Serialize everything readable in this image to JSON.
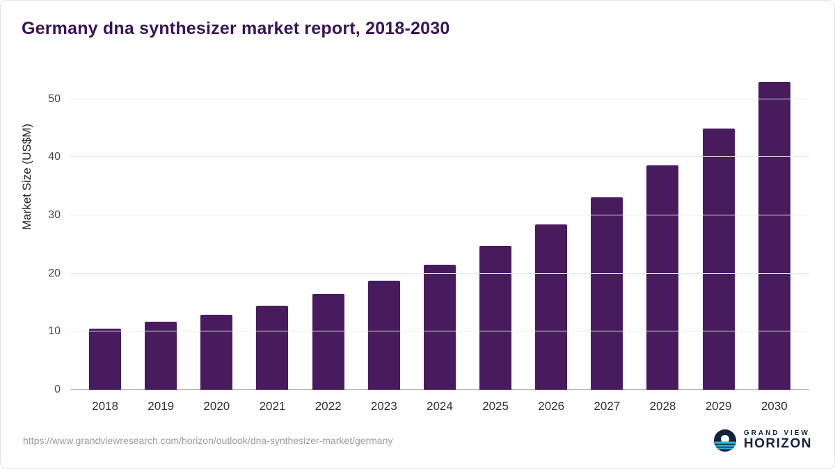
{
  "title": "Germany dna synthesizer market report, 2018-2030",
  "footer": {
    "source_url": "https://www.grandviewresearch.com/horizon/outlook/dna-synthesizer-market/germany",
    "brand_top": "GRAND VIEW",
    "brand_bottom": "HORIZON"
  },
  "colors": {
    "bar": "#471b5e",
    "title": "#3a1354",
    "brand_navy": "#14233c",
    "brand_cyan": "#29b7d3",
    "gridline": "#e8e8e8"
  },
  "chart_data": {
    "type": "bar",
    "title": "Germany dna synthesizer market report, 2018-2030",
    "categories": [
      "2018",
      "2019",
      "2020",
      "2021",
      "2022",
      "2023",
      "2024",
      "2025",
      "2026",
      "2027",
      "2028",
      "2029",
      "2030"
    ],
    "values": [
      10.5,
      11.7,
      12.9,
      14.5,
      16.5,
      18.8,
      21.5,
      24.8,
      28.5,
      33.1,
      38.6,
      45.0,
      53.0
    ],
    "xlabel": "",
    "ylabel": "Market Size (US$M)",
    "yticks": [
      0,
      10,
      20,
      30,
      40,
      50
    ],
    "ylim": [
      0,
      55
    ],
    "grid": true,
    "legend": "none",
    "bar_color": "#471b5e"
  }
}
